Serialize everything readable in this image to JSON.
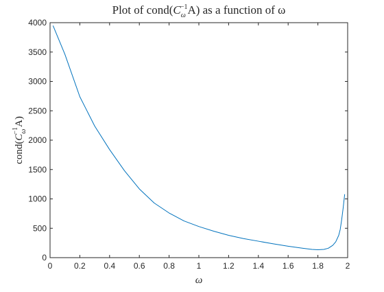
{
  "chart_data": {
    "type": "line",
    "title": {
      "prefix": "Plot of cond(",
      "base": "C",
      "subscript": "ω",
      "superscript": "−1",
      "suffix": "A) as a function of ω"
    },
    "xlabel": "ω",
    "ylabel": {
      "prefix": "cond(",
      "base": "C",
      "subscript": "ω",
      "superscript": "−1",
      "suffix": "A)"
    },
    "xlim": [
      0,
      2
    ],
    "ylim": [
      0,
      4000
    ],
    "x_ticks": [
      "0",
      "0.2",
      "0.4",
      "0.6",
      "0.8",
      "1",
      "1.2",
      "1.4",
      "1.6",
      "1.8",
      "2"
    ],
    "y_ticks": [
      "0",
      "500",
      "1000",
      "1500",
      "2000",
      "2500",
      "3000",
      "3500",
      "4000"
    ],
    "grid": false,
    "series": [
      {
        "color": "#0072BD",
        "x": [
          0.02,
          0.1,
          0.2,
          0.3,
          0.4,
          0.5,
          0.6,
          0.7,
          0.8,
          0.9,
          1.0,
          1.1,
          1.2,
          1.3,
          1.4,
          1.5,
          1.6,
          1.7,
          1.76,
          1.8,
          1.84,
          1.87,
          1.9,
          1.92,
          1.94,
          1.95,
          1.96,
          1.97,
          1.98
        ],
        "y": [
          3950,
          3460,
          2740,
          2240,
          1840,
          1480,
          1170,
          930,
          760,
          625,
          530,
          450,
          380,
          325,
          280,
          235,
          195,
          160,
          140,
          135,
          140,
          160,
          210,
          270,
          380,
          480,
          650,
          850,
          1080
        ]
      }
    ]
  }
}
